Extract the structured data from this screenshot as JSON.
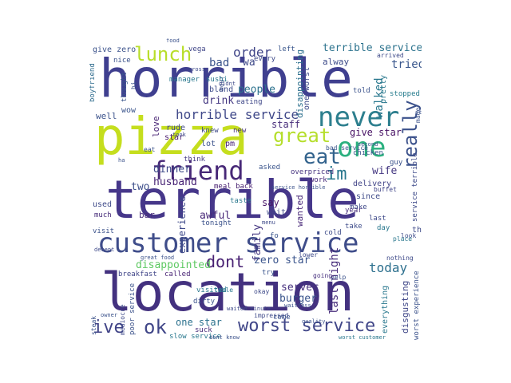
{
  "words": [
    {
      "text": "horrible",
      "color": "#3f3f8f",
      "vertical": false
    },
    {
      "text": "pizza",
      "color": "#c5de1e",
      "vertical": false
    },
    {
      "text": "terrible",
      "color": "#46378a",
      "vertical": false
    },
    {
      "text": "location",
      "color": "#43317f",
      "vertical": false
    },
    {
      "text": "customer service",
      "color": "#3f4d8a",
      "vertical": false
    },
    {
      "text": "never",
      "color": "#2d7f8e",
      "vertical": false
    },
    {
      "text": "one",
      "color": "#2bb07f",
      "vertical": false
    },
    {
      "text": "friend",
      "color": "#472877",
      "vertical": false
    },
    {
      "text": "lunch",
      "color": "#b8de29",
      "vertical": false
    },
    {
      "text": "great",
      "color": "#b5de2b",
      "vertical": false
    },
    {
      "text": "eat",
      "color": "#33638d",
      "vertical": false
    },
    {
      "text": "im",
      "color": "#2a788e",
      "vertical": false
    },
    {
      "text": "really",
      "color": "#3b518b",
      "vertical": true
    },
    {
      "text": "worst service",
      "color": "#404688",
      "vertical": false
    },
    {
      "text": "ok",
      "color": "#404688",
      "vertical": false
    },
    {
      "text": "ive",
      "color": "#414487",
      "vertical": false
    },
    {
      "text": "dont",
      "color": "#482173",
      "vertical": false
    },
    {
      "text": "today",
      "color": "#2d708e",
      "vertical": false
    },
    {
      "text": "horrible service",
      "color": "#3f4889",
      "vertical": false
    },
    {
      "text": "terrible service",
      "color": "#2c738e",
      "vertical": false
    },
    {
      "text": "order",
      "color": "#404588",
      "vertical": false
    },
    {
      "text": "walked",
      "color": "#2a788e",
      "vertical": true
    },
    {
      "text": "tried",
      "color": "#39568c",
      "vertical": false
    },
    {
      "text": "drink",
      "color": "#453882",
      "vertical": false
    },
    {
      "text": "people",
      "color": "#2c728e",
      "vertical": false
    },
    {
      "text": "bad",
      "color": "#3a538b",
      "vertical": false
    },
    {
      "text": "wa",
      "color": "#3e4989",
      "vertical": false
    },
    {
      "text": "staff",
      "color": "#472c7a",
      "vertical": false
    },
    {
      "text": "give star",
      "color": "#471164",
      "vertical": false
    },
    {
      "text": "dinner",
      "color": "#3e4a89",
      "vertical": false
    },
    {
      "text": "husband",
      "color": "#482475",
      "vertical": false
    },
    {
      "text": "two",
      "color": "#3d4e8a",
      "vertical": false
    },
    {
      "text": "wife",
      "color": "#453882",
      "vertical": false
    },
    {
      "text": "disappointed",
      "color": "#5ec962",
      "vertical": false
    },
    {
      "text": "zero star",
      "color": "#3a548c",
      "vertical": false
    },
    {
      "text": "last night",
      "color": "#472d7b",
      "vertical": true
    },
    {
      "text": "server",
      "color": "#46307e",
      "vertical": false
    },
    {
      "text": "burger",
      "color": "#3a548c",
      "vertical": false
    },
    {
      "text": "one star",
      "color": "#2c728e",
      "vertical": false
    },
    {
      "text": "awful",
      "color": "#482878",
      "vertical": false
    },
    {
      "text": "say",
      "color": "#481467",
      "vertical": false
    },
    {
      "text": "experience",
      "color": "#3e4989",
      "vertical": true
    },
    {
      "text": "family",
      "color": "#453781",
      "vertical": true
    },
    {
      "text": "disappointing",
      "color": "#2d708e",
      "vertical": true
    },
    {
      "text": "disgusting",
      "color": "#3f4788",
      "vertical": true
    },
    {
      "text": "everything",
      "color": "#2a788e",
      "vertical": true
    },
    {
      "text": "worst experience",
      "color": "#3b528b",
      "vertical": true
    },
    {
      "text": "service terrible",
      "color": "#3e4a89",
      "vertical": true
    },
    {
      "text": "stopped",
      "color": "#287d8e",
      "vertical": false
    },
    {
      "text": "told",
      "color": "#3b528b",
      "vertical": false
    },
    {
      "text": "alway",
      "color": "#3e4c8a",
      "vertical": false
    },
    {
      "text": "give zero",
      "color": "#3b528b",
      "vertical": false
    },
    {
      "text": "nice",
      "color": "#3b528b",
      "vertical": false
    },
    {
      "text": "vega",
      "color": "#404688",
      "vertical": false
    },
    {
      "text": "left",
      "color": "#39568c",
      "vertical": false
    },
    {
      "text": "every",
      "color": "#3e4a89",
      "vertical": false
    },
    {
      "text": "one worst",
      "color": "#3e4a89",
      "vertical": true
    },
    {
      "text": "boyfriend",
      "color": "#2f6c8e",
      "vertical": true
    },
    {
      "text": "thought",
      "color": "#39568c",
      "vertical": true
    },
    {
      "text": "well",
      "color": "#3b528b",
      "vertical": false
    },
    {
      "text": "wow",
      "color": "#3a548c",
      "vertical": false
    },
    {
      "text": "star",
      "color": "#481a6c",
      "vertical": false
    },
    {
      "text": "love",
      "color": "#482475",
      "vertical": true
    },
    {
      "text": "rude",
      "color": "#3f4889",
      "vertical": false
    },
    {
      "text": "lot",
      "color": "#3b528b",
      "vertical": false
    },
    {
      "text": "pm",
      "color": "#482374",
      "vertical": false
    },
    {
      "text": "knew",
      "color": "#3e4a89",
      "vertical": false
    },
    {
      "text": "new",
      "color": "#46327e",
      "vertical": false
    },
    {
      "text": "bland",
      "color": "#3e4c8a",
      "vertical": false
    },
    {
      "text": "eating",
      "color": "#3f4788",
      "vertical": false
    },
    {
      "text": "manager",
      "color": "#2a788e",
      "vertical": false
    },
    {
      "text": "sushi",
      "color": "#2a788e",
      "vertical": false
    },
    {
      "text": "pretty",
      "color": "#2a788e",
      "vertical": true
    },
    {
      "text": "bad service",
      "color": "#3a548c",
      "vertical": false
    },
    {
      "text": "chicken",
      "color": "#3b528b",
      "vertical": false
    },
    {
      "text": "delivery",
      "color": "#414487",
      "vertical": false
    },
    {
      "text": "since",
      "color": "#3e4a89",
      "vertical": false
    },
    {
      "text": "make",
      "color": "#3e4989",
      "vertical": false
    },
    {
      "text": "year",
      "color": "#472d7b",
      "vertical": false
    },
    {
      "text": "last",
      "color": "#3e4a89",
      "vertical": false
    },
    {
      "text": "buffet",
      "color": "#404588",
      "vertical": false
    },
    {
      "text": "guy",
      "color": "#3b528b",
      "vertical": false
    },
    {
      "text": "work",
      "color": "#472a7a",
      "vertical": false
    },
    {
      "text": "overpriced",
      "color": "#46337f",
      "vertical": false
    },
    {
      "text": "asked",
      "color": "#3a548c",
      "vertical": false
    },
    {
      "text": "think",
      "color": "#453882",
      "vertical": false
    },
    {
      "text": "meal back",
      "color": "#482071",
      "vertical": false
    },
    {
      "text": "service horrible",
      "color": "#3b528b",
      "vertical": false
    },
    {
      "text": "used",
      "color": "#3e4a89",
      "vertical": false
    },
    {
      "text": "bar",
      "color": "#472c7a",
      "vertical": false
    },
    {
      "text": "much",
      "color": "#472c7a",
      "vertical": false
    },
    {
      "text": "taste",
      "color": "#2a788e",
      "vertical": false
    },
    {
      "text": "tonight",
      "color": "#3b528b",
      "vertical": false
    },
    {
      "text": "wait",
      "color": "#3f4889",
      "vertical": false
    },
    {
      "text": "take",
      "color": "#482878",
      "vertical": true
    },
    {
      "text": "wanted",
      "color": "#3e4c8a",
      "vertical": false
    },
    {
      "text": "cold",
      "color": "#2a788e",
      "vertical": false
    },
    {
      "text": "day",
      "color": "#3a548c",
      "vertical": false
    },
    {
      "text": "fo",
      "color": "#3e4a89",
      "vertical": false
    },
    {
      "text": "thing",
      "color": "#3b528b",
      "vertical": false
    },
    {
      "text": "visit",
      "color": "#404588",
      "vertical": false
    },
    {
      "text": "breakfast",
      "color": "#482374",
      "vertical": false
    },
    {
      "text": "called",
      "color": "#3a548c",
      "vertical": false
    },
    {
      "text": "try",
      "color": "#3b528b",
      "vertical": false
    },
    {
      "text": "yelp",
      "color": "#46307e",
      "vertical": false
    },
    {
      "text": "going",
      "color": "#2a788e",
      "vertical": false
    },
    {
      "text": "visited",
      "color": "#2a788e",
      "vertical": false
    },
    {
      "text": "table",
      "color": "#3b528b",
      "vertical": false
    },
    {
      "text": "dirty",
      "color": "#3e4a89",
      "vertical": false
    },
    {
      "text": "okay",
      "color": "#3e4989",
      "vertical": false
    },
    {
      "text": "impressed",
      "color": "#3b528b",
      "vertical": false
    },
    {
      "text": "waitress",
      "color": "#3b528b",
      "vertical": false
    },
    {
      "text": "come",
      "color": "#472c7a",
      "vertical": false
    },
    {
      "text": "suck",
      "color": "#2a788e",
      "vertical": false
    },
    {
      "text": "slow service",
      "color": "#3b528b",
      "vertical": false
    },
    {
      "text": "dont know",
      "color": "#3e4a89",
      "vertical": false
    },
    {
      "text": "waited minute",
      "color": "#2a788e",
      "vertical": false
    },
    {
      "text": "worst customer",
      "color": "#3b528b",
      "vertical": false
    },
    {
      "text": "quality",
      "color": "#3b528b",
      "vertical": true
    },
    {
      "text": "seriously",
      "color": "#3e4a89",
      "vertical": true
    },
    {
      "text": "poor service",
      "color": "#3b528b",
      "vertical": true
    },
    {
      "text": "mediocre",
      "color": "#3b528b",
      "vertical": false
    },
    {
      "text": "steak",
      "color": "#3e4a89",
      "vertical": false
    },
    {
      "text": "food",
      "color": "#3b528b",
      "vertical": true
    },
    {
      "text": "arrived",
      "color": "#3e4a89",
      "vertical": false
    },
    {
      "text": "made",
      "color": "#3e4a89",
      "vertical": false
    },
    {
      "text": "nothing",
      "color": "#2a788e",
      "vertical": false
    },
    {
      "text": "look",
      "color": "#3e4a89",
      "vertical": false
    },
    {
      "text": "place",
      "color": "#3b528b",
      "vertical": false
    },
    {
      "text": "lower",
      "color": "#3e4a89",
      "vertical": false
    },
    {
      "text": "great food",
      "color": "#3b528b",
      "vertical": false
    },
    {
      "text": "decent",
      "color": "#3b528b",
      "vertical": false
    },
    {
      "text": "owner",
      "color": "#3e4a89",
      "vertical": false
    },
    {
      "text": "second",
      "color": "#3b528b",
      "vertical": false
    },
    {
      "text": "menu",
      "color": "#3b528b",
      "vertical": true
    },
    {
      "text": "hour",
      "color": "#3e4a89",
      "vertical": false
    },
    {
      "text": "ha",
      "color": "#3b528b",
      "vertical": false
    },
    {
      "text": "didnt",
      "color": "#3b528b",
      "vertical": true
    },
    {
      "text": "hi",
      "color": "#3e4a89",
      "vertical": false
    },
    {
      "text": "gross",
      "color": "#3b528b",
      "vertical": false
    },
    {
      "text": "eat",
      "color": "#3e4a89",
      "vertical": false
    },
    {
      "text": "took",
      "color": "#3b528b",
      "vertical": false
    },
    {
      "text": "store",
      "color": "#3e4a89",
      "vertical": false
    }
  ]
}
